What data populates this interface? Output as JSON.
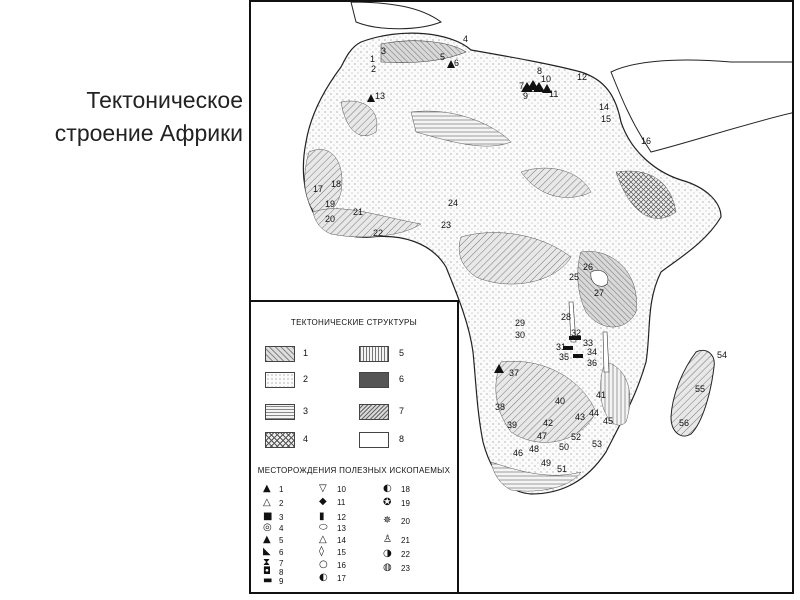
{
  "title": "Тектоническое\nстроение Африки",
  "legend": {
    "structures_title": "ТЕКТОНИЧЕСКИЕ СТРУКТУРЫ",
    "structures": [
      "1",
      "2",
      "3",
      "4",
      "5",
      "6",
      "7",
      "8"
    ],
    "deposits_title": "МЕСТОРОЖДЕНИЯ ПОЛЕЗНЫХ ИСКОПАЕМЫХ",
    "deposits": [
      {
        "num": "1",
        "sym": "▲"
      },
      {
        "num": "2",
        "sym": "△"
      },
      {
        "num": "3",
        "sym": "■"
      },
      {
        "num": "4",
        "sym": "◎"
      },
      {
        "num": "5",
        "sym": "▲"
      },
      {
        "num": "6",
        "sym": "◣"
      },
      {
        "num": "7",
        "sym": "⧗"
      },
      {
        "num": "8",
        "sym": "◘"
      },
      {
        "num": "9",
        "sym": "▬"
      },
      {
        "num": "10",
        "sym": "▽"
      },
      {
        "num": "11",
        "sym": "◆"
      },
      {
        "num": "12",
        "sym": "▮"
      },
      {
        "num": "13",
        "sym": "⬭"
      },
      {
        "num": "14",
        "sym": "△"
      },
      {
        "num": "15",
        "sym": "◊"
      },
      {
        "num": "16",
        "sym": "○"
      },
      {
        "num": "17",
        "sym": "◐"
      },
      {
        "num": "18",
        "sym": "◐"
      },
      {
        "num": "19",
        "sym": "✪"
      },
      {
        "num": "20",
        "sym": "✵"
      },
      {
        "num": "21",
        "sym": "♙"
      },
      {
        "num": "22",
        "sym": "◑"
      },
      {
        "num": "23",
        "sym": "◍"
      }
    ]
  },
  "map_markers": [
    "1",
    "2",
    "3",
    "4",
    "5",
    "6",
    "7",
    "8",
    "9",
    "10",
    "11",
    "12",
    "13",
    "14",
    "15",
    "16",
    "17",
    "18",
    "19",
    "20",
    "21",
    "22",
    "23",
    "24",
    "25",
    "26",
    "27",
    "28",
    "29",
    "30",
    "31",
    "32",
    "33",
    "34",
    "35",
    "36",
    "37",
    "38",
    "39",
    "40",
    "41",
    "42",
    "43",
    "44",
    "45",
    "46",
    "47",
    "48",
    "49",
    "50",
    "51",
    "52",
    "53",
    "54",
    "55",
    "56"
  ]
}
